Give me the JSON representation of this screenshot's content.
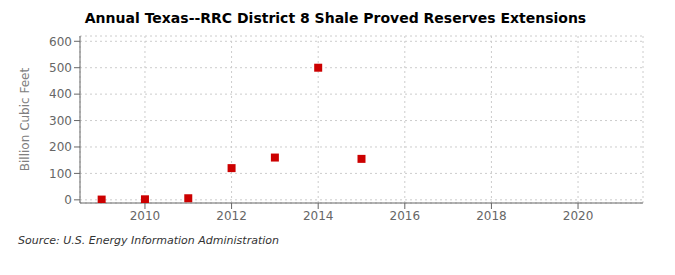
{
  "chart_data": {
    "type": "scatter",
    "title": "Annual Texas--RRC District 8 Shale Proved Reserves Extensions",
    "ylabel": "Billion Cubic Feet",
    "annotation": "Source: U.S. Energy Information Administration",
    "x": [
      2009,
      2010,
      2011,
      2012,
      2013,
      2014,
      2015
    ],
    "values": [
      1.0,
      2.0,
      6.0,
      120,
      160,
      500,
      155
    ],
    "color": "#cc0000",
    "marker": "square",
    "xlim": [
      2008.5,
      2021.5
    ],
    "xticks": [
      2010,
      2012,
      2014,
      2016,
      2018,
      2020
    ],
    "ylim": [
      -12,
      620
    ],
    "yticks": [
      0,
      100,
      200,
      300,
      400,
      500,
      600
    ],
    "grid": true
  }
}
